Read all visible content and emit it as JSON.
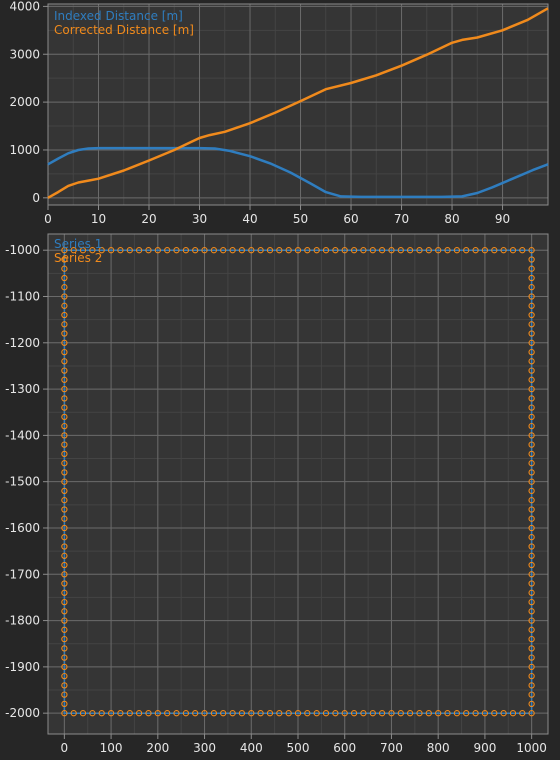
{
  "colors": {
    "background": "#262626",
    "plot_background": "#353535",
    "grid_major": "#6a6a6a",
    "grid_minor": "#444444",
    "axis": "#8c8c8c",
    "tick_text": "#e6e6e6",
    "series_blue": "#2f7dbf",
    "series_orange": "#f08a1c"
  },
  "chart_data": [
    {
      "type": "line",
      "title": "",
      "xlabel": "",
      "ylabel": "",
      "xlim": [
        0,
        99
      ],
      "ylim": [
        -150,
        4050
      ],
      "grid": true,
      "legend_position": "top-left",
      "x_ticks": [
        0,
        10,
        20,
        30,
        40,
        50,
        60,
        70,
        80,
        90
      ],
      "y_ticks": [
        0,
        1000,
        2000,
        3000,
        4000
      ],
      "x_tick_labels": [
        "0",
        "10",
        "20",
        "30",
        "40",
        "50",
        "60",
        "70",
        "80",
        "90"
      ],
      "y_tick_labels": [
        "0",
        "1000",
        "2000",
        "3000",
        "4000"
      ],
      "series": [
        {
          "name": "Indexed Distance [m]",
          "color": "#2f7dbf",
          "x": [
            0,
            2,
            4,
            6,
            8,
            10,
            15,
            20,
            25,
            30,
            33,
            36,
            40,
            44,
            48,
            52,
            55,
            58,
            62,
            70,
            78,
            82,
            85,
            88,
            92,
            96,
            99
          ],
          "y": [
            700,
            820,
            930,
            1000,
            1030,
            1040,
            1040,
            1040,
            1040,
            1040,
            1030,
            980,
            870,
            720,
            530,
            300,
            120,
            30,
            20,
            20,
            20,
            30,
            100,
            220,
            400,
            580,
            700
          ]
        },
        {
          "name": "Corrected Distance [m]",
          "color": "#f08a1c",
          "x": [
            0,
            2,
            4,
            6,
            8,
            10,
            15,
            20,
            25,
            28,
            30,
            32,
            35,
            40,
            45,
            50,
            55,
            60,
            65,
            70,
            75,
            80,
            82,
            85,
            90,
            95,
            99
          ],
          "y": [
            0,
            120,
            250,
            320,
            360,
            400,
            570,
            780,
            1000,
            1150,
            1250,
            1310,
            1380,
            1560,
            1780,
            2020,
            2270,
            2400,
            2560,
            2760,
            2990,
            3240,
            3300,
            3350,
            3500,
            3720,
            3960
          ]
        }
      ]
    },
    {
      "type": "scatter",
      "title": "",
      "xlabel": "",
      "ylabel": "",
      "xlim": [
        -35,
        1035
      ],
      "ylim": [
        -2045,
        -965
      ],
      "grid": true,
      "legend_position": "top-left",
      "x_ticks": [
        0,
        100,
        200,
        300,
        400,
        500,
        600,
        700,
        800,
        900,
        1000
      ],
      "y_ticks": [
        -1000,
        -1100,
        -1200,
        -1300,
        -1400,
        -1500,
        -1600,
        -1700,
        -1800,
        -1900,
        -2000
      ],
      "x_tick_labels": [
        "0",
        "100",
        "200",
        "300",
        "400",
        "500",
        "600",
        "700",
        "800",
        "900",
        "1000"
      ],
      "y_tick_labels": [
        "-1000",
        "-1100",
        "-1200",
        "-1300",
        "-1400",
        "-1500",
        "-1600",
        "-1700",
        "-1800",
        "-1900",
        "-2000"
      ],
      "shape": "square perimeter",
      "x_range": [
        0,
        1000
      ],
      "y_range": [
        -2000,
        -1000
      ],
      "points_per_side": 50,
      "series": [
        {
          "name": "Series 1",
          "color": "#2f7dbf",
          "marker": "line"
        },
        {
          "name": "Series 2",
          "color": "#f08a1c",
          "marker": "circle"
        }
      ]
    }
  ]
}
